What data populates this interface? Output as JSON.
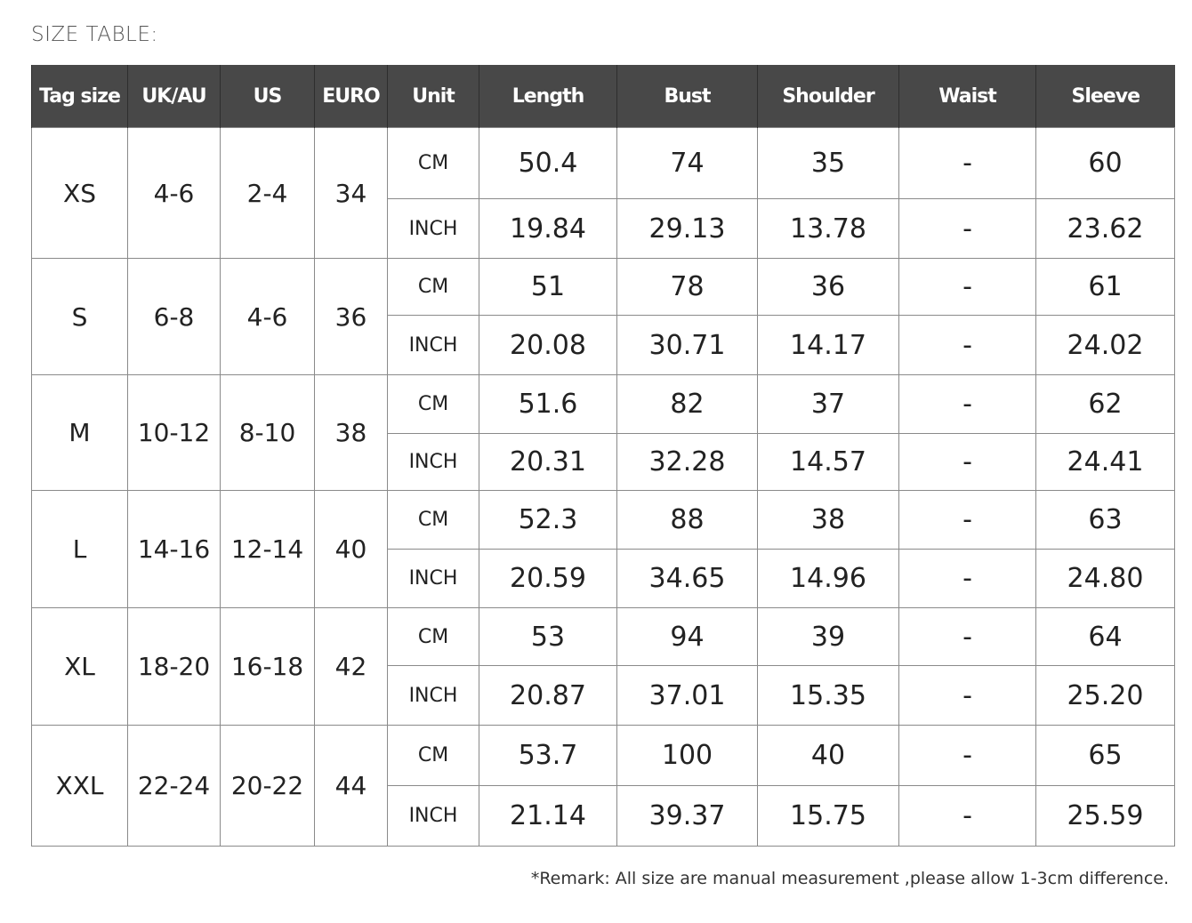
{
  "title": "SIZE TABLE:",
  "headers": [
    "Tag size",
    "UK/AU",
    "US",
    "EURO",
    "Unit",
    "Length",
    "Bust",
    "Shoulder",
    "Waist",
    "Sleeve"
  ],
  "rows": [
    {
      "tag": "XS",
      "uk": "4-6",
      "us": "2-4",
      "euro": "34",
      "cm": [
        "50.4",
        "74",
        "35",
        "-",
        "60"
      ],
      "inch": [
        "19.84",
        "29.13",
        "13.78",
        "-",
        "23.62"
      ]
    },
    {
      "tag": "S",
      "uk": "6-8",
      "us": "4-6",
      "euro": "36",
      "cm": [
        "51",
        "78",
        "36",
        "-",
        "61"
      ],
      "inch": [
        "20.08",
        "30.71",
        "14.17",
        "-",
        "24.02"
      ]
    },
    {
      "tag": "M",
      "uk": "10-12",
      "us": "8-10",
      "euro": "38",
      "cm": [
        "51.6",
        "82",
        "37",
        "-",
        "62"
      ],
      "inch": [
        "20.31",
        "32.28",
        "14.57",
        "-",
        "24.41"
      ]
    },
    {
      "tag": "L",
      "uk": "14-16",
      "us": "12-14",
      "euro": "40",
      "cm": [
        "52.3",
        "88",
        "38",
        "-",
        "63"
      ],
      "inch": [
        "20.59",
        "34.65",
        "14.96",
        "-",
        "24.80"
      ]
    },
    {
      "tag": "XL",
      "uk": "18-20",
      "us": "16-18",
      "euro": "42",
      "cm": [
        "53",
        "94",
        "39",
        "-",
        "64"
      ],
      "inch": [
        "20.87",
        "37.01",
        "15.35",
        "-",
        "25.20"
      ]
    },
    {
      "tag": "XXL",
      "uk": "22-24",
      "us": "20-22",
      "euro": "44",
      "cm": [
        "53.7",
        "100",
        "40",
        "-",
        "65"
      ],
      "inch": [
        "21.14",
        "39.37",
        "15.75",
        "-",
        "25.59"
      ]
    }
  ],
  "units": {
    "cm": "CM",
    "inch": "INCH"
  },
  "remark": "*Remark: All size are manual measurement ,please allow 1-3cm difference.",
  "colors": {
    "header_bg": "#484848",
    "header_text": "#ffffff",
    "border": "#8a8a8a"
  }
}
